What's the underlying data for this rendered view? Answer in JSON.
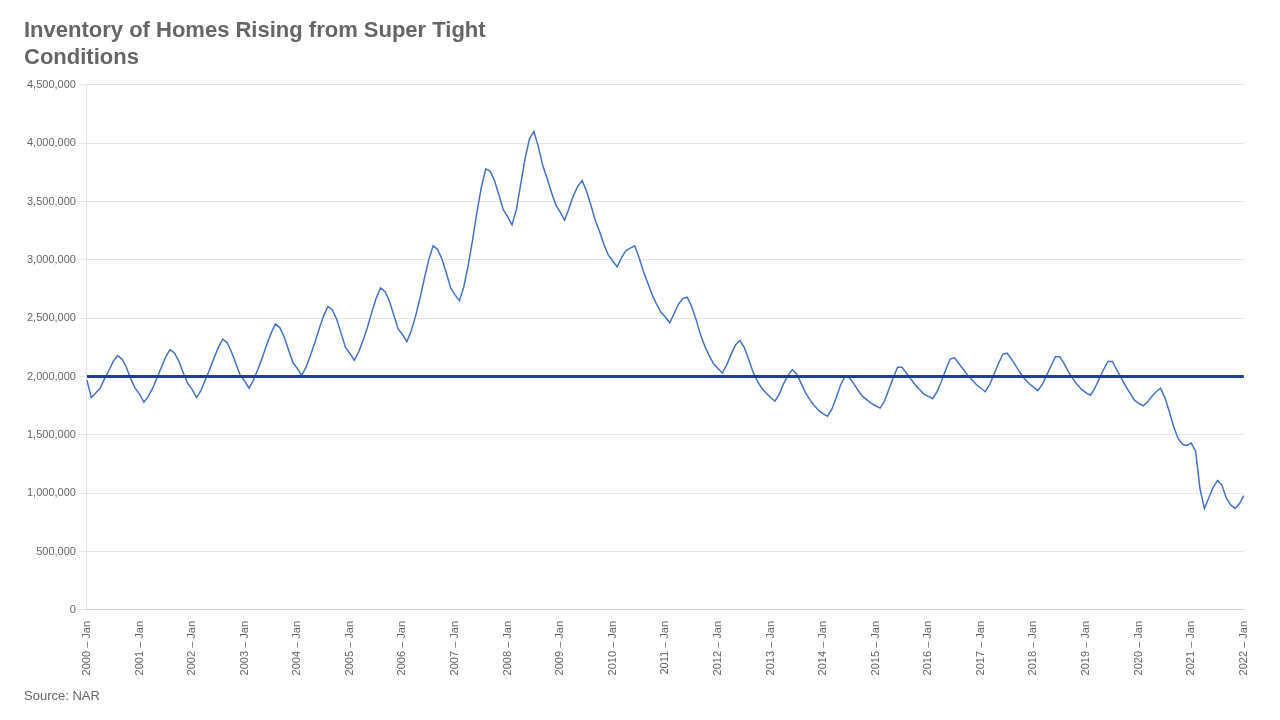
{
  "chart_data": {
    "type": "line",
    "title": "Inventory of Homes Rising from Super Tight\nConditions",
    "source": "Source: NAR",
    "color": "#4472c4",
    "hline": {
      "value": 2000000,
      "color": "#1f3f8f"
    },
    "grid": "y",
    "ylim": [
      0,
      4500000
    ],
    "yticks": [
      0,
      {
        "value": 500000,
        "label": "500,000"
      },
      {
        "value": 1000000,
        "label": "1,000,000"
      },
      {
        "value": 1500000,
        "label": "1,500,000"
      },
      {
        "value": 2000000,
        "label": "2,000,000"
      },
      {
        "value": 2500000,
        "label": "2,500,000"
      },
      {
        "value": 3000000,
        "label": "3,000,000"
      },
      {
        "value": 3500000,
        "label": "3,500,000"
      },
      {
        "value": 4000000,
        "label": "4,000,000"
      },
      {
        "value": 4500000,
        "label": "4,500,000"
      }
    ],
    "categories": [
      "2000 – Jan",
      null,
      null,
      null,
      null,
      null,
      null,
      null,
      null,
      null,
      null,
      null,
      "2001 – Jan",
      null,
      null,
      null,
      null,
      null,
      null,
      null,
      null,
      null,
      null,
      null,
      "2002 – Jan",
      null,
      null,
      null,
      null,
      null,
      null,
      null,
      null,
      null,
      null,
      null,
      "2003 – Jan",
      null,
      null,
      null,
      null,
      null,
      null,
      null,
      null,
      null,
      null,
      null,
      "2004 – Jan",
      null,
      null,
      null,
      null,
      null,
      null,
      null,
      null,
      null,
      null,
      null,
      "2005 – Jan",
      null,
      null,
      null,
      null,
      null,
      null,
      null,
      null,
      null,
      null,
      null,
      "2006 – Jan",
      null,
      null,
      null,
      null,
      null,
      null,
      null,
      null,
      null,
      null,
      null,
      "2007 – Jan",
      null,
      null,
      null,
      null,
      null,
      null,
      null,
      null,
      null,
      null,
      null,
      "2008 – Jan",
      null,
      null,
      null,
      null,
      null,
      null,
      null,
      null,
      null,
      null,
      null,
      "2009 – Jan",
      null,
      null,
      null,
      null,
      null,
      null,
      null,
      null,
      null,
      null,
      null,
      "2010 – Jan",
      null,
      null,
      null,
      null,
      null,
      null,
      null,
      null,
      null,
      null,
      null,
      "2011 – Jan",
      null,
      null,
      null,
      null,
      null,
      null,
      null,
      null,
      null,
      null,
      null,
      "2012 – Jan",
      null,
      null,
      null,
      null,
      null,
      null,
      null,
      null,
      null,
      null,
      null,
      "2013 – Jan",
      null,
      null,
      null,
      null,
      null,
      null,
      null,
      null,
      null,
      null,
      null,
      "2014 – Jan",
      null,
      null,
      null,
      null,
      null,
      null,
      null,
      null,
      null,
      null,
      null,
      "2015 – Jan",
      null,
      null,
      null,
      null,
      null,
      null,
      null,
      null,
      null,
      null,
      null,
      "2016 – Jan",
      null,
      null,
      null,
      null,
      null,
      null,
      null,
      null,
      null,
      null,
      null,
      "2017 – Jan",
      null,
      null,
      null,
      null,
      null,
      null,
      null,
      null,
      null,
      null,
      null,
      "2018 – Jan",
      null,
      null,
      null,
      null,
      null,
      null,
      null,
      null,
      null,
      null,
      null,
      "2019 – Jan",
      null,
      null,
      null,
      null,
      null,
      null,
      null,
      null,
      null,
      null,
      null,
      "2020 – Jan",
      null,
      null,
      null,
      null,
      null,
      null,
      null,
      null,
      null,
      null,
      null,
      "2021 – Jan",
      null,
      null,
      null,
      null,
      null,
      null,
      null,
      null,
      null,
      null,
      null,
      "2022 – Jan"
    ],
    "values": [
      1970000,
      1820000,
      1860000,
      1900000,
      1980000,
      2050000,
      2130000,
      2180000,
      2150000,
      2080000,
      1980000,
      1900000,
      1850000,
      1780000,
      1830000,
      1900000,
      1990000,
      2080000,
      2170000,
      2230000,
      2200000,
      2130000,
      2030000,
      1940000,
      1890000,
      1820000,
      1880000,
      1970000,
      2060000,
      2160000,
      2250000,
      2320000,
      2290000,
      2210000,
      2110000,
      2010000,
      1960000,
      1900000,
      1970000,
      2060000,
      2160000,
      2270000,
      2370000,
      2450000,
      2420000,
      2340000,
      2230000,
      2120000,
      2070000,
      2010000,
      2080000,
      2180000,
      2290000,
      2410000,
      2520000,
      2600000,
      2570000,
      2490000,
      2370000,
      2250000,
      2200000,
      2140000,
      2210000,
      2310000,
      2420000,
      2550000,
      2670000,
      2760000,
      2730000,
      2650000,
      2530000,
      2410000,
      2360000,
      2300000,
      2390000,
      2520000,
      2670000,
      2840000,
      3000000,
      3120000,
      3090000,
      3010000,
      2890000,
      2760000,
      2700000,
      2650000,
      2770000,
      2950000,
      3170000,
      3410000,
      3620000,
      3780000,
      3760000,
      3680000,
      3560000,
      3430000,
      3370000,
      3300000,
      3430000,
      3650000,
      3870000,
      4040000,
      4100000,
      3970000,
      3810000,
      3700000,
      3580000,
      3470000,
      3410000,
      3340000,
      3440000,
      3550000,
      3630000,
      3680000,
      3590000,
      3470000,
      3340000,
      3240000,
      3130000,
      3040000,
      2990000,
      2940000,
      3020000,
      3080000,
      3100000,
      3120000,
      3020000,
      2900000,
      2800000,
      2700000,
      2620000,
      2550000,
      2510000,
      2460000,
      2540000,
      2620000,
      2670000,
      2680000,
      2600000,
      2490000,
      2360000,
      2260000,
      2180000,
      2110000,
      2070000,
      2030000,
      2100000,
      2190000,
      2270000,
      2310000,
      2250000,
      2150000,
      2040000,
      1960000,
      1900000,
      1860000,
      1820000,
      1790000,
      1850000,
      1940000,
      2010000,
      2060000,
      2020000,
      1940000,
      1860000,
      1800000,
      1750000,
      1710000,
      1680000,
      1660000,
      1720000,
      1820000,
      1930000,
      2000000,
      1990000,
      1940000,
      1880000,
      1830000,
      1800000,
      1770000,
      1750000,
      1730000,
      1790000,
      1890000,
      1990000,
      2080000,
      2080000,
      2030000,
      1980000,
      1930000,
      1890000,
      1850000,
      1830000,
      1810000,
      1870000,
      1960000,
      2060000,
      2150000,
      2160000,
      2110000,
      2060000,
      2010000,
      1970000,
      1930000,
      1900000,
      1870000,
      1930000,
      2020000,
      2110000,
      2190000,
      2200000,
      2150000,
      2090000,
      2030000,
      1980000,
      1940000,
      1910000,
      1880000,
      1930000,
      2010000,
      2090000,
      2170000,
      2170000,
      2110000,
      2040000,
      1980000,
      1930000,
      1890000,
      1860000,
      1840000,
      1900000,
      1980000,
      2060000,
      2130000,
      2130000,
      2060000,
      1990000,
      1920000,
      1860000,
      1800000,
      1770000,
      1750000,
      1780000,
      1830000,
      1870000,
      1900000,
      1820000,
      1700000,
      1570000,
      1470000,
      1420000,
      1410000,
      1430000,
      1360000,
      1040000,
      870000,
      960000,
      1050000,
      1110000,
      1070000,
      960000,
      900000,
      870000,
      910000,
      980000
    ]
  }
}
